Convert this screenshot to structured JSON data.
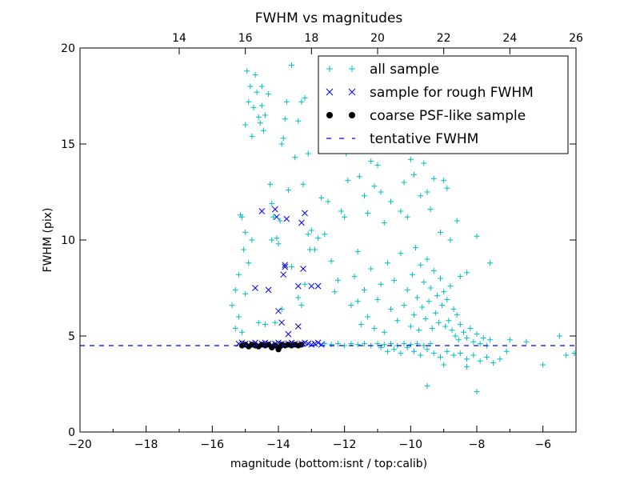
{
  "chart_data": {
    "type": "scatter",
    "title": "FWHM vs magnitudes",
    "xlabel": "magnitude (bottom:isnt / top:calib)",
    "ylabel": "FWHM (pix)",
    "xlim": [
      -20,
      -5
    ],
    "ylim": [
      0,
      20
    ],
    "x_ticks": [
      "−20",
      "−18",
      "−16",
      "−14",
      "−12",
      "−10",
      "−8",
      "−6"
    ],
    "x_tick_values": [
      -20,
      -18,
      -16,
      -14,
      -12,
      -10,
      -8,
      -6
    ],
    "y_ticks": [
      "0",
      "5",
      "10",
      "15",
      "20"
    ],
    "y_tick_values": [
      0,
      5,
      10,
      15,
      20
    ],
    "top_axis": {
      "offset": 31,
      "ticks": [
        "14",
        "16",
        "18",
        "20",
        "22",
        "24",
        "26"
      ],
      "tick_values": [
        14,
        16,
        18,
        20,
        22,
        24,
        26
      ]
    },
    "grid": false,
    "legend_position": "upper-right",
    "series": [
      {
        "name": "all sample",
        "marker": "plus",
        "color": "#00bfbf",
        "points": [
          [
            -15.4,
            6.6
          ],
          [
            -15.3,
            7.4
          ],
          [
            -15.2,
            8.2
          ],
          [
            -15.15,
            11.3
          ],
          [
            -15.1,
            11.2
          ],
          [
            -15.05,
            9.5
          ],
          [
            -15.0,
            10.4
          ],
          [
            -15.0,
            16.0
          ],
          [
            -14.95,
            18.8
          ],
          [
            -14.9,
            17.2
          ],
          [
            -14.85,
            18.0
          ],
          [
            -14.8,
            15.4
          ],
          [
            -14.75,
            16.9
          ],
          [
            -14.7,
            18.6
          ],
          [
            -14.65,
            17.7
          ],
          [
            -14.6,
            16.4
          ],
          [
            -14.55,
            16.1
          ],
          [
            -14.5,
            18.0
          ],
          [
            -14.5,
            17.0
          ],
          [
            -14.45,
            15.7
          ],
          [
            -14.4,
            16.5
          ],
          [
            -14.3,
            17.6
          ],
          [
            -14.25,
            12.9
          ],
          [
            -14.2,
            11.9
          ],
          [
            -14.15,
            11.2
          ],
          [
            -14.05,
            10.1
          ],
          [
            -14.0,
            9.8
          ],
          [
            -13.95,
            11.0
          ],
          [
            -13.9,
            15.0
          ],
          [
            -13.85,
            15.3
          ],
          [
            -13.8,
            16.3
          ],
          [
            -13.75,
            17.2
          ],
          [
            -13.7,
            12.6
          ],
          [
            -13.6,
            19.1
          ],
          [
            -13.5,
            14.3
          ],
          [
            -13.4,
            16.2
          ],
          [
            -13.3,
            17.2
          ],
          [
            -13.25,
            12.9
          ],
          [
            -13.2,
            17.4
          ],
          [
            -13.1,
            14.5
          ],
          [
            -13.05,
            9.5
          ],
          [
            -13.0,
            10.5
          ],
          [
            -15.3,
            5.4
          ],
          [
            -15.2,
            6.0
          ],
          [
            -15.1,
            5.2
          ],
          [
            -15.0,
            7.2
          ],
          [
            -14.9,
            8.8
          ],
          [
            -14.8,
            10.0
          ],
          [
            -14.6,
            5.7
          ],
          [
            -14.4,
            5.6
          ],
          [
            -14.2,
            10.0
          ],
          [
            -14.1,
            5.7
          ],
          [
            -13.9,
            6.4
          ],
          [
            -13.6,
            8.6
          ],
          [
            -13.4,
            7.0
          ],
          [
            -13.3,
            6.6
          ],
          [
            -13.2,
            7.7
          ],
          [
            -13.1,
            10.3
          ],
          [
            -12.9,
            9.5
          ],
          [
            -12.8,
            10.1
          ],
          [
            -12.7,
            12.2
          ],
          [
            -12.6,
            10.3
          ],
          [
            -12.5,
            12.0
          ],
          [
            -12.4,
            8.9
          ],
          [
            -12.3,
            7.3
          ],
          [
            -12.2,
            7.9
          ],
          [
            -12.1,
            11.5
          ],
          [
            -12.0,
            11.2
          ],
          [
            -11.95,
            14.5
          ],
          [
            -11.9,
            13.1
          ],
          [
            -11.8,
            6.6
          ],
          [
            -11.7,
            8.1
          ],
          [
            -11.6,
            9.4
          ],
          [
            -11.55,
            13.3
          ],
          [
            -11.5,
            15.3
          ],
          [
            -11.4,
            12.3
          ],
          [
            -11.3,
            11.4
          ],
          [
            -11.2,
            14.1
          ],
          [
            -11.1,
            12.8
          ],
          [
            -11.05,
            15.8
          ],
          [
            -11.0,
            13.9
          ],
          [
            -10.9,
            12.5
          ],
          [
            -10.8,
            10.9
          ],
          [
            -10.7,
            15.1
          ],
          [
            -10.6,
            12.0
          ],
          [
            -10.5,
            14.7
          ],
          [
            -10.4,
            17.9
          ],
          [
            -10.3,
            11.5
          ],
          [
            -10.2,
            13.0
          ],
          [
            -10.1,
            11.2
          ],
          [
            -10.0,
            14.2
          ],
          [
            -9.9,
            13.4
          ],
          [
            -9.8,
            16.4
          ],
          [
            -9.7,
            12.3
          ],
          [
            -9.6,
            14.0
          ],
          [
            -9.5,
            12.5
          ],
          [
            -9.4,
            11.6
          ],
          [
            -9.3,
            13.2
          ],
          [
            -9.2,
            15.8
          ],
          [
            -9.1,
            10.4
          ],
          [
            -9.0,
            13.1
          ],
          [
            -8.9,
            12.7
          ],
          [
            -8.8,
            10.0
          ],
          [
            -8.6,
            11.0
          ],
          [
            -8.5,
            8.1
          ],
          [
            -8.3,
            8.3
          ],
          [
            -8.0,
            10.2
          ],
          [
            -7.6,
            8.8
          ],
          [
            -7.0,
            4.8
          ],
          [
            -6.5,
            4.7
          ],
          [
            -6.0,
            3.5
          ],
          [
            -5.5,
            5.0
          ],
          [
            -5.3,
            4.0
          ],
          [
            -5.05,
            4.1
          ],
          [
            -11.6,
            6.8
          ],
          [
            -11.5,
            5.6
          ],
          [
            -11.4,
            7.4
          ],
          [
            -11.3,
            6.0
          ],
          [
            -11.2,
            8.5
          ],
          [
            -11.1,
            5.4
          ],
          [
            -11.0,
            6.9
          ],
          [
            -10.9,
            7.7
          ],
          [
            -10.8,
            5.2
          ],
          [
            -10.7,
            8.8
          ],
          [
            -10.6,
            6.4
          ],
          [
            -10.5,
            7.9
          ],
          [
            -10.4,
            5.8
          ],
          [
            -10.3,
            9.3
          ],
          [
            -10.2,
            6.6
          ],
          [
            -10.1,
            7.4
          ],
          [
            -10.0,
            5.5
          ],
          [
            -9.95,
            8.2
          ],
          [
            -9.9,
            6.1
          ],
          [
            -9.85,
            9.6
          ],
          [
            -9.8,
            7.0
          ],
          [
            -9.75,
            5.3
          ],
          [
            -9.7,
            8.7
          ],
          [
            -9.65,
            6.5
          ],
          [
            -9.6,
            7.8
          ],
          [
            -9.55,
            5.9
          ],
          [
            -9.5,
            9.0
          ],
          [
            -9.45,
            6.8
          ],
          [
            -9.4,
            7.5
          ],
          [
            -9.35,
            5.4
          ],
          [
            -9.3,
            8.4
          ],
          [
            -9.25,
            6.2
          ],
          [
            -9.2,
            7.1
          ],
          [
            -9.15,
            5.7
          ],
          [
            -9.1,
            8.0
          ],
          [
            -9.05,
            6.6
          ],
          [
            -9.0,
            7.3
          ],
          [
            -8.95,
            5.5
          ],
          [
            -8.9,
            6.9
          ],
          [
            -8.85,
            5.8
          ],
          [
            -8.8,
            7.6
          ],
          [
            -8.75,
            5.3
          ],
          [
            -8.7,
            6.4
          ],
          [
            -8.65,
            5.0
          ],
          [
            -8.6,
            6.1
          ],
          [
            -8.55,
            4.8
          ],
          [
            -8.5,
            5.6
          ],
          [
            -8.4,
            5.2
          ],
          [
            -8.3,
            4.9
          ],
          [
            -8.2,
            5.4
          ],
          [
            -8.1,
            4.7
          ],
          [
            -8.0,
            5.1
          ],
          [
            -7.9,
            4.6
          ],
          [
            -7.8,
            4.9
          ],
          [
            -7.7,
            4.5
          ],
          [
            -7.6,
            4.8
          ],
          [
            -10.9,
            4.4
          ],
          [
            -10.7,
            4.2
          ],
          [
            -10.5,
            4.3
          ],
          [
            -10.3,
            4.1
          ],
          [
            -10.1,
            4.4
          ],
          [
            -9.9,
            4.2
          ],
          [
            -9.7,
            4.0
          ],
          [
            -9.5,
            4.3
          ],
          [
            -9.3,
            4.1
          ],
          [
            -9.1,
            3.9
          ],
          [
            -8.9,
            4.2
          ],
          [
            -8.7,
            4.0
          ],
          [
            -8.5,
            4.1
          ],
          [
            -8.3,
            3.8
          ],
          [
            -8.1,
            4.0
          ],
          [
            -7.9,
            3.7
          ],
          [
            -7.7,
            3.9
          ],
          [
            -7.5,
            3.6
          ],
          [
            -7.3,
            3.8
          ],
          [
            -7.1,
            4.2
          ],
          [
            -9.5,
            2.4
          ],
          [
            -8.3,
            3.4
          ],
          [
            -8.0,
            2.1
          ],
          [
            -9.0,
            3.5
          ],
          [
            -12.6,
            4.6
          ],
          [
            -12.4,
            4.55
          ],
          [
            -12.2,
            4.6
          ],
          [
            -12.0,
            4.5
          ],
          [
            -11.8,
            4.6
          ],
          [
            -11.6,
            4.55
          ],
          [
            -11.4,
            4.6
          ],
          [
            -11.2,
            4.5
          ],
          [
            -11.0,
            4.6
          ],
          [
            -10.8,
            4.55
          ],
          [
            -10.6,
            4.6
          ],
          [
            -10.4,
            4.5
          ],
          [
            -10.2,
            4.6
          ],
          [
            -10.0,
            4.55
          ],
          [
            -9.8,
            4.6
          ],
          [
            -9.6,
            4.5
          ],
          [
            -9.4,
            4.6
          ]
        ]
      },
      {
        "name": "sample for rough FWHM",
        "marker": "x",
        "color": "#0000ff",
        "points": [
          [
            -14.5,
            11.5
          ],
          [
            -14.1,
            11.6
          ],
          [
            -14.05,
            11.2
          ],
          [
            -13.75,
            11.1
          ],
          [
            -13.2,
            11.4
          ],
          [
            -13.3,
            10.9
          ],
          [
            -13.8,
            8.6
          ],
          [
            -13.8,
            8.7
          ],
          [
            -13.85,
            8.2
          ],
          [
            -13.25,
            8.5
          ],
          [
            -14.7,
            7.5
          ],
          [
            -14.3,
            7.4
          ],
          [
            -13.4,
            7.6
          ],
          [
            -13.0,
            7.6
          ],
          [
            -12.8,
            7.6
          ],
          [
            -14.0,
            6.3
          ],
          [
            -13.9,
            5.7
          ],
          [
            -13.7,
            5.1
          ],
          [
            -13.4,
            5.5
          ],
          [
            -15.2,
            4.6
          ],
          [
            -15.1,
            4.65
          ],
          [
            -15.0,
            4.6
          ],
          [
            -14.9,
            4.55
          ],
          [
            -14.8,
            4.6
          ],
          [
            -14.7,
            4.65
          ],
          [
            -14.6,
            4.55
          ],
          [
            -14.5,
            4.6
          ],
          [
            -14.4,
            4.65
          ],
          [
            -14.3,
            4.6
          ],
          [
            -14.2,
            4.55
          ],
          [
            -14.1,
            4.6
          ],
          [
            -14.0,
            4.65
          ],
          [
            -13.9,
            4.6
          ],
          [
            -13.8,
            4.55
          ],
          [
            -13.7,
            4.6
          ],
          [
            -13.6,
            4.65
          ],
          [
            -13.5,
            4.6
          ],
          [
            -13.4,
            4.55
          ],
          [
            -13.3,
            4.6
          ],
          [
            -13.2,
            4.65
          ],
          [
            -13.1,
            4.6
          ],
          [
            -13.0,
            4.55
          ],
          [
            -12.9,
            4.6
          ],
          [
            -12.8,
            4.65
          ],
          [
            -12.7,
            4.55
          ]
        ]
      },
      {
        "name": "coarse PSF-like sample",
        "marker": "circle",
        "color": "#000000",
        "points": [
          [
            -15.1,
            4.5
          ],
          [
            -15.0,
            4.55
          ],
          [
            -14.9,
            4.45
          ],
          [
            -14.8,
            4.55
          ],
          [
            -14.7,
            4.5
          ],
          [
            -14.6,
            4.45
          ],
          [
            -14.5,
            4.55
          ],
          [
            -14.4,
            4.5
          ],
          [
            -14.3,
            4.55
          ],
          [
            -14.2,
            4.4
          ],
          [
            -14.1,
            4.5
          ],
          [
            -14.0,
            4.3
          ],
          [
            -13.95,
            4.45
          ],
          [
            -13.9,
            4.55
          ],
          [
            -13.8,
            4.5
          ],
          [
            -13.7,
            4.55
          ],
          [
            -13.6,
            4.5
          ],
          [
            -13.5,
            4.55
          ],
          [
            -13.4,
            4.5
          ],
          [
            -13.3,
            4.55
          ]
        ]
      },
      {
        "name": "tentative FWHM",
        "marker": "dashed-line",
        "color": "#0000ff",
        "y": 4.5
      }
    ]
  }
}
